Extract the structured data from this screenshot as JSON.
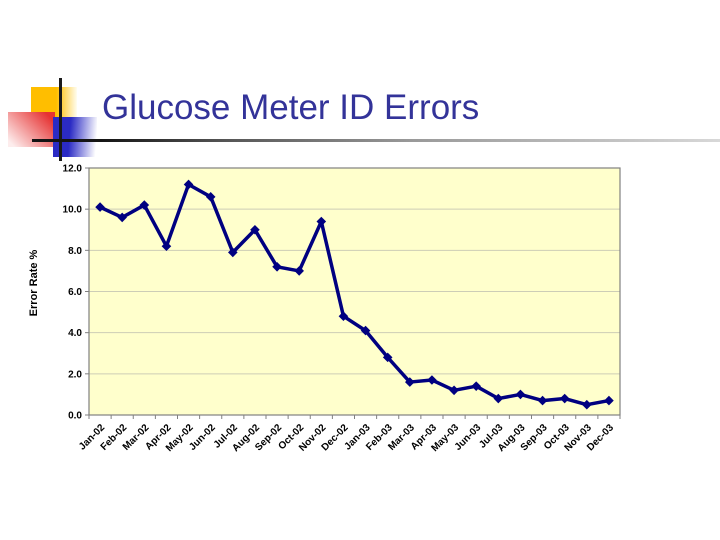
{
  "slide": {
    "title": "Glucose Meter ID Errors",
    "title_color": "#333399",
    "background": "#FFFFFF"
  },
  "decoration": {
    "yellow_square_color": "#FFBE00",
    "red_square_color": "#E63232",
    "blue_square_color": "#2B2BC4",
    "crosshair_color": "#1A1A1A"
  },
  "chart_data": {
    "type": "line",
    "title": "",
    "xlabel": "",
    "ylabel": "Error Rate %",
    "ylim": [
      0,
      12
    ],
    "ytick_step": 2,
    "ytick_labels": [
      "0.0",
      "2.0",
      "4.0",
      "6.0",
      "8.0",
      "10.0",
      "12.0"
    ],
    "grid": true,
    "legend_position": "none",
    "plot_bg": "#FFFFCC",
    "plot_border": "#808080",
    "gridline_color": "#CDCDB6",
    "line_color": "#000080",
    "marker": "diamond",
    "categories": [
      "Jan-02",
      "Feb-02",
      "Mar-02",
      "Apr-02",
      "May-02",
      "Jun-02",
      "Jul-02",
      "Aug-02",
      "Sep-02",
      "Oct-02",
      "Nov-02",
      "Dec-02",
      "Jan-03",
      "Feb-03",
      "Mar-03",
      "Apr-03",
      "May-03",
      "Jun-03",
      "Jul-03",
      "Aug-03",
      "Sep-03",
      "Oct-03",
      "Nov-03",
      "Dec-03"
    ],
    "series": [
      {
        "name": "Error Rate %",
        "values": [
          10.1,
          9.6,
          10.2,
          8.2,
          11.2,
          10.6,
          7.9,
          9.0,
          7.2,
          7.0,
          9.4,
          4.8,
          4.1,
          2.8,
          1.6,
          1.7,
          1.2,
          1.4,
          0.8,
          1.0,
          0.7,
          0.8,
          0.5,
          0.7
        ]
      }
    ]
  }
}
